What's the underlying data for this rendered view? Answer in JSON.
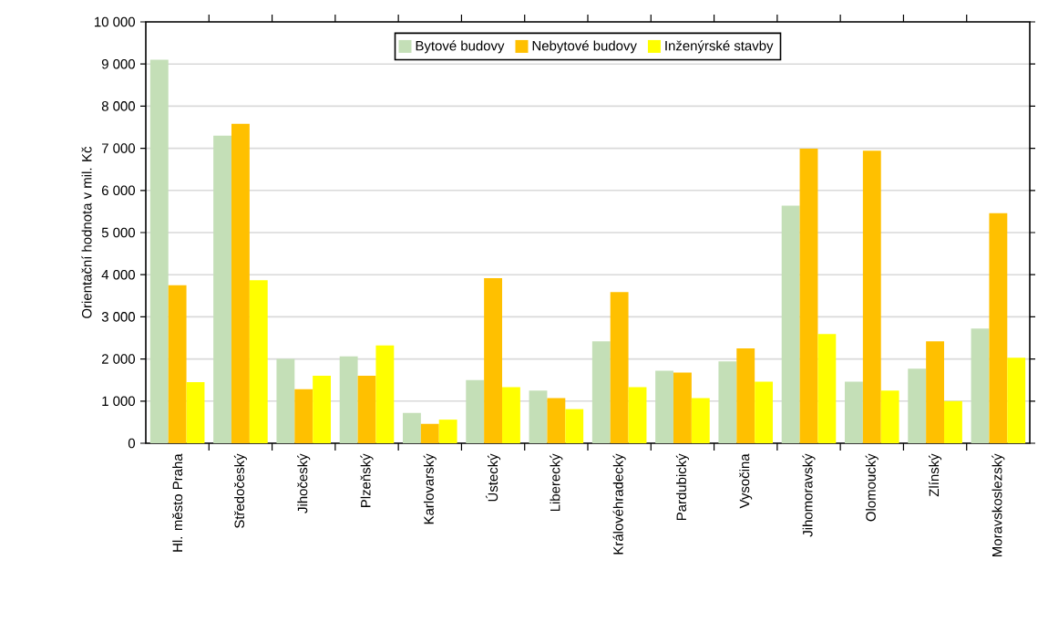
{
  "chart_data": {
    "type": "bar",
    "ylabel": "Orientační hodnota v mil. Kč",
    "categories": [
      "Hl. město Praha",
      "Středočeský",
      "Jihočeský",
      "Plzeňský",
      "Karlovarský",
      "Ústecký",
      "Liberecký",
      "Královéhradecký",
      "Pardubický",
      "Vysočina",
      "Jihomoravský",
      "Olomoucký",
      "Zlínský",
      "Moravskoslezský"
    ],
    "series": [
      {
        "name": "Bytové budovy",
        "color": "#c4dfb7",
        "values": [
          9100,
          7300,
          2000,
          2060,
          720,
          1500,
          1250,
          2420,
          1720,
          1940,
          5640,
          1460,
          1770,
          2720
        ]
      },
      {
        "name": "Nebytové budovy",
        "color": "#ffc000",
        "values": [
          3750,
          7580,
          1280,
          1600,
          460,
          3920,
          1070,
          3590,
          1680,
          2250,
          6990,
          6940,
          2420,
          5460
        ]
      },
      {
        "name": "Inženýrské stavby",
        "color": "#ffff00",
        "values": [
          1450,
          3870,
          1600,
          2320,
          560,
          1330,
          810,
          1330,
          1070,
          1460,
          2590,
          1250,
          1000,
          2030
        ]
      }
    ],
    "ylim": [
      0,
      10000
    ],
    "yticks": [
      {
        "value": 0,
        "label": "0"
      },
      {
        "value": 1000,
        "label": "1 000"
      },
      {
        "value": 2000,
        "label": "2 000"
      },
      {
        "value": 3000,
        "label": "3 000"
      },
      {
        "value": 4000,
        "label": "4 000"
      },
      {
        "value": 5000,
        "label": "5 000"
      },
      {
        "value": 6000,
        "label": "6 000"
      },
      {
        "value": 7000,
        "label": "7 000"
      },
      {
        "value": 8000,
        "label": "8 000"
      },
      {
        "value": 9000,
        "label": "9 000"
      },
      {
        "value": 10000,
        "label": "10 000"
      }
    ],
    "grid": "y",
    "legend": "top"
  }
}
